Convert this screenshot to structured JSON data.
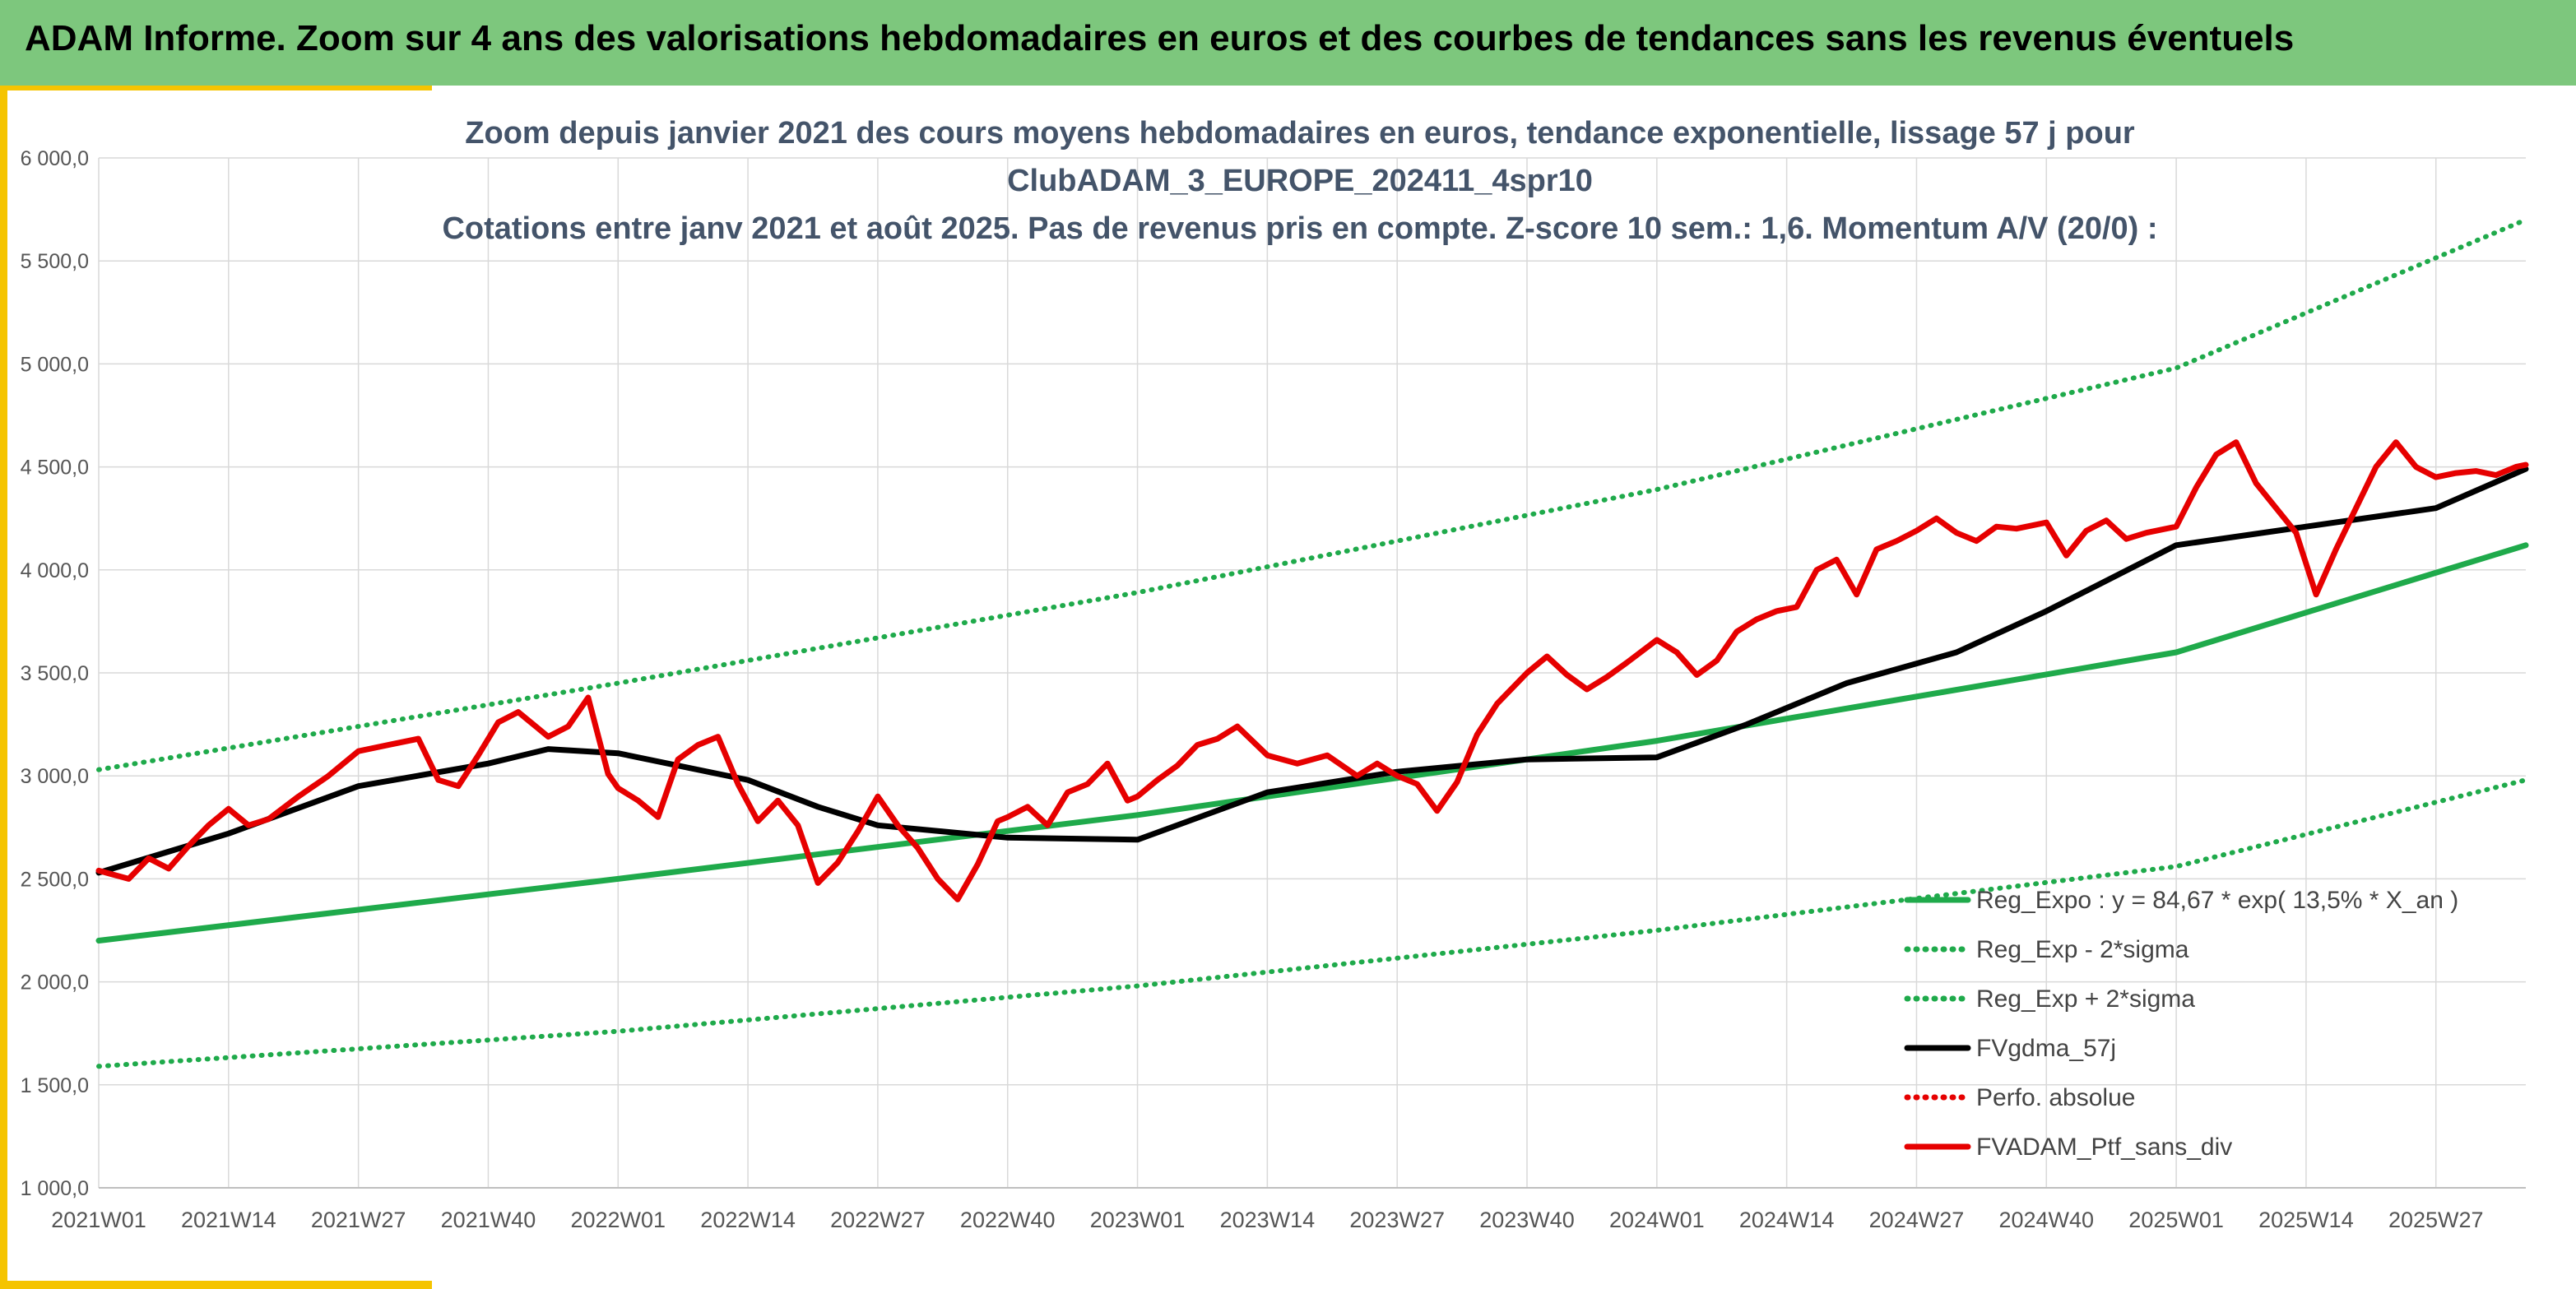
{
  "header": {
    "title": "ADAM Informe. Zoom sur 4 ans des valorisations hebdomadaires en euros et des courbes de tendances sans les revenus éventuels"
  },
  "colors": {
    "header_bg": "#7dc77d",
    "accent": "#f5c400",
    "reg_expo": "#1faa4b",
    "reg_band": "#1faa4b",
    "mma": "#000000",
    "perf": "#e60000",
    "portfolio": "#e60000",
    "title_text": "#44546a"
  },
  "chart_data": {
    "type": "line",
    "title_lines": [
      "Zoom depuis janvier 2021 des cours moyens hebdomadaires en euros, tendance exponentielle, lissage 57 j pour",
      "ClubADAM_3_EUROPE_202411_4spr10",
      "Cotations entre janv 2021 et août 2025. Pas de revenus pris en compte. Z-score 10 sem.: 1,6. Momentum A/V (20/0) :"
    ],
    "ylim": [
      1000,
      6000
    ],
    "y_ticks": [
      "1 000,0",
      "1 500,0",
      "2 000,0",
      "2 500,0",
      "3 000,0",
      "3 500,0",
      "4 000,0",
      "4 500,0",
      "5 000,0",
      "5 500,0",
      "6 000,0"
    ],
    "x_ticks": [
      "2021W01",
      "2021W14",
      "2021W27",
      "2021W40",
      "2022W01",
      "2022W14",
      "2022W27",
      "2022W40",
      "2023W01",
      "2023W14",
      "2023W27",
      "2023W40",
      "2024W01",
      "2024W14",
      "2024W27",
      "2024W40",
      "2025W01",
      "2025W14",
      "2025W27"
    ],
    "grid": true,
    "legend_position": "bottom-right",
    "legend": [
      {
        "label": "Reg_Expo : y = 84,67 * exp( 13,5% *  X_an )",
        "style": "solid",
        "color": "#1faa4b"
      },
      {
        "label": "Reg_Exp - 2*sigma",
        "style": "dotted",
        "color": "#1faa4b"
      },
      {
        "label": "Reg_Exp + 2*sigma",
        "style": "dotted",
        "color": "#1faa4b"
      },
      {
        "label": "FVgdma_57j",
        "style": "solid",
        "color": "#000000"
      },
      {
        "label": "Perfo. absolue",
        "style": "dotted",
        "color": "#e60000"
      },
      {
        "label": "FVADAM_Ptf_sans_div",
        "style": "solid",
        "color": "#e60000"
      }
    ],
    "series": [
      {
        "name": "Reg_Expo : y = 84,67 * exp( 13,5% *  X_an )",
        "x": [
          0,
          52,
          104,
          156,
          208,
          243
        ],
        "values": [
          2200,
          2500,
          2810,
          3170,
          3600,
          4120
        ]
      },
      {
        "name": "Reg_Exp - 2*sigma",
        "x": [
          0,
          52,
          104,
          156,
          208,
          243
        ],
        "values": [
          1590,
          1760,
          1980,
          2250,
          2560,
          2980
        ]
      },
      {
        "name": "Reg_Exp + 2*sigma",
        "x": [
          0,
          52,
          104,
          156,
          208,
          243
        ],
        "values": [
          3030,
          3450,
          3890,
          4390,
          4980,
          5700
        ]
      },
      {
        "name": "FVgdma_57j",
        "x": [
          0,
          13,
          26,
          39,
          45,
          52,
          65,
          72,
          78,
          91,
          104,
          117,
          130,
          143,
          156,
          165,
          175,
          186,
          195,
          208,
          221,
          234,
          243
        ],
        "values": [
          2530,
          2720,
          2950,
          3060,
          3130,
          3110,
          2980,
          2850,
          2760,
          2700,
          2690,
          2920,
          3020,
          3080,
          3090,
          3250,
          3450,
          3600,
          3800,
          4120,
          4210,
          4300,
          4490
        ]
      },
      {
        "name": "FVADAM_Ptf_sans_div",
        "x": [
          0,
          3,
          5,
          7,
          9,
          11,
          13,
          15,
          17,
          20,
          23,
          26,
          29,
          32,
          34,
          36,
          38,
          40,
          42,
          44,
          45,
          47,
          49,
          51,
          52,
          54,
          56,
          58,
          60,
          62,
          64,
          66,
          68,
          70,
          72,
          74,
          76,
          78,
          80,
          82,
          84,
          86,
          88,
          90,
          91,
          93,
          95,
          97,
          99,
          101,
          103,
          104,
          106,
          108,
          110,
          112,
          114,
          117,
          120,
          123,
          126,
          128,
          130,
          132,
          134,
          136,
          138,
          140,
          143,
          145,
          147,
          149,
          151,
          153,
          156,
          158,
          160,
          162,
          164,
          166,
          168,
          170,
          172,
          174,
          176,
          178,
          180,
          182,
          184,
          186,
          188,
          190,
          192,
          195,
          197,
          199,
          201,
          203,
          205,
          208,
          210,
          212,
          214,
          216,
          218,
          220,
          222,
          224,
          226,
          228,
          230,
          232,
          234,
          236,
          238,
          240,
          242,
          243
        ],
        "values": [
          2540,
          2500,
          2600,
          2550,
          2660,
          2760,
          2840,
          2760,
          2790,
          2900,
          3000,
          3120,
          3150,
          3180,
          2980,
          2950,
          3100,
          3260,
          3310,
          3230,
          3190,
          3240,
          3380,
          3010,
          2940,
          2880,
          2800,
          3080,
          3150,
          3190,
          2960,
          2780,
          2880,
          2760,
          2480,
          2580,
          2730,
          2900,
          2760,
          2650,
          2500,
          2400,
          2570,
          2780,
          2800,
          2850,
          2760,
          2920,
          2960,
          3060,
          2880,
          2900,
          2980,
          3050,
          3150,
          3180,
          3240,
          3100,
          3060,
          3100,
          3000,
          3060,
          3000,
          2960,
          2830,
          2970,
          3200,
          3350,
          3500,
          3580,
          3490,
          3420,
          3480,
          3550,
          3660,
          3600,
          3490,
          3560,
          3700,
          3760,
          3800,
          3820,
          4000,
          4050,
          3880,
          4100,
          4140,
          4190,
          4250,
          4180,
          4140,
          4210,
          4200,
          4230,
          4070,
          4190,
          4240,
          4150,
          4180,
          4210,
          4400,
          4560,
          4620,
          4420,
          4300,
          4180,
          3880,
          4100,
          4300,
          4500,
          4620,
          4500,
          4450,
          4470,
          4480,
          4460,
          4500,
          4510
        ]
      }
    ]
  }
}
